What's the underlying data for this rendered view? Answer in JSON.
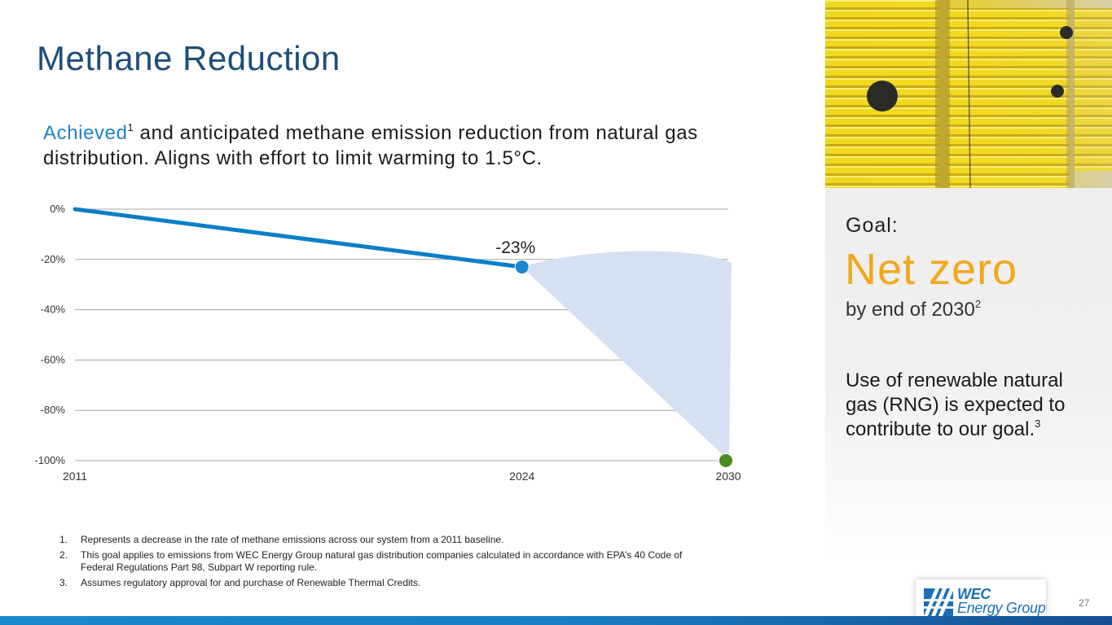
{
  "title": "Methane Reduction",
  "subtitle": {
    "accent": "Achieved",
    "accent_sup": "1",
    "rest": " and anticipated methane emission reduction from natural gas distribution. Aligns with effort to limit warming to 1.5°C."
  },
  "chart_data": {
    "type": "line",
    "title": "",
    "xlabel": "",
    "ylabel": "",
    "categories": [
      "2011",
      "2024",
      "2030"
    ],
    "x": [
      2011,
      2024,
      2030
    ],
    "xlim": [
      2011,
      2030
    ],
    "ylim": [
      -100,
      0
    ],
    "yticks": [
      0,
      -20,
      -40,
      -60,
      -80,
      -100
    ],
    "ytick_labels": [
      "0%",
      "-20%",
      "-40%",
      "-60%",
      "-80%",
      "-100%"
    ],
    "grid": true,
    "series": [
      {
        "name": "Achieved",
        "x": [
          2011,
          2024
        ],
        "values": [
          0,
          -23
        ],
        "color": "#0a7fc7"
      },
      {
        "name": "Anticipated",
        "x": [
          2024,
          2030
        ],
        "values": [
          -23,
          -100
        ],
        "color": "#d5e1f2",
        "style": "shaded-region"
      }
    ],
    "points": [
      {
        "x": 2024,
        "y": -23,
        "color": "#1a86d0",
        "label": "-23%"
      },
      {
        "x": 2030,
        "y": -100,
        "color": "#4b8a1e",
        "label": ""
      }
    ]
  },
  "footnotes": [
    {
      "num": "1.",
      "text": "Represents a decrease in the rate of methane emissions across our system from a 2011 baseline."
    },
    {
      "num": "2.",
      "text": "This goal applies to emissions from WEC Energy Group natural gas distribution companies calculated in accordance with EPA’s 40 Code of Federal Regulations Part 98, Subpart W reporting rule."
    },
    {
      "num": "3.",
      "text": "Assumes regulatory approval for and purchase of Renewable Thermal Credits."
    }
  ],
  "goal": {
    "label": "Goal:",
    "value": "Net zero",
    "date": "by end of 2030",
    "date_sup": "2",
    "rng_text": "Use of renewable natural gas (RNG) is expected to contribute to our goal.",
    "rng_sup": "3"
  },
  "logo": {
    "line1": "WEC",
    "line2": "Energy Group"
  },
  "page_number": "27",
  "colors": {
    "title": "#1f4e79",
    "accent": "#1b84c6",
    "goal": "#f1a81b",
    "line": "#0a7fc7",
    "shade": "#d5e1f2",
    "end_point": "#4b8a1e"
  }
}
